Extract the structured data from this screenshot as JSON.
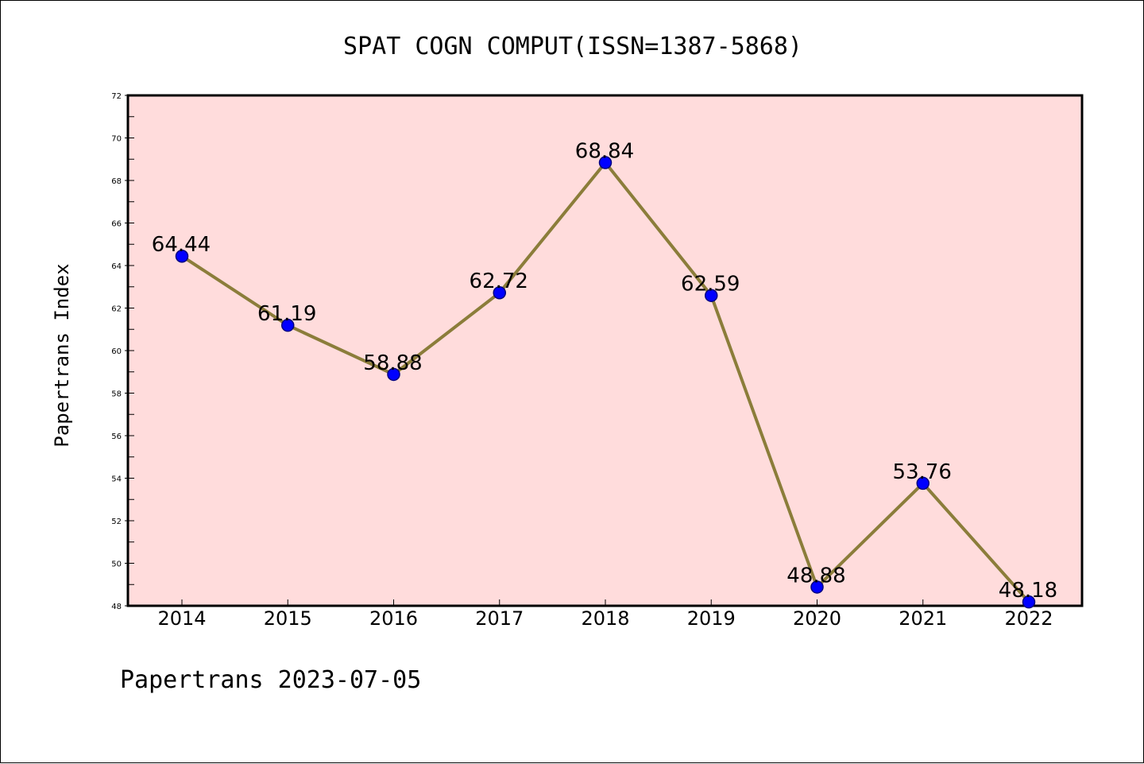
{
  "chart_data": {
    "type": "line",
    "title": "SPAT COGN COMPUT(ISSN=1387-5868)",
    "ylabel": "Papertrans Index",
    "xlabel": "",
    "footer": "Papertrans 2023-07-05",
    "categories": [
      "2014",
      "2015",
      "2016",
      "2017",
      "2018",
      "2019",
      "2020",
      "2021",
      "2022"
    ],
    "values": [
      64.44,
      61.19,
      58.88,
      62.72,
      68.84,
      62.59,
      48.88,
      53.76,
      48.18
    ],
    "data_labels": [
      "64.44",
      "61.19",
      "58.88",
      "62.72",
      "68.84",
      "62.59",
      "48.88",
      "53.76",
      "48.18"
    ],
    "ylim": [
      48,
      72
    ],
    "yticks": [
      48,
      50,
      52,
      54,
      56,
      58,
      60,
      62,
      64,
      66,
      68,
      70,
      72
    ],
    "grid": false,
    "colors": {
      "plot_background": "#ffdcdc",
      "line": "#8b7d3a",
      "marker": "#0000ff",
      "marker_edge": "#000080"
    }
  }
}
